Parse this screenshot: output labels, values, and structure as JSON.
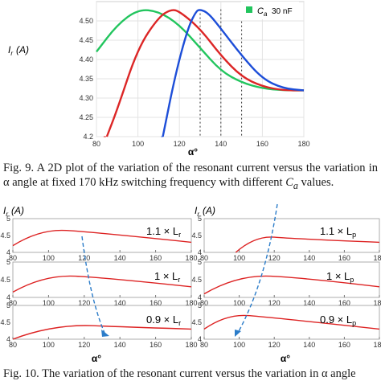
{
  "figure9": {
    "legend_entry": "C",
    "legend_sub": "a",
    "legend_value": "30 nF",
    "legend_color": "#22c55e",
    "ylabel_main": "I",
    "ylabel_sub": "r",
    "ylabel_unit": "(A)",
    "xlabel": "α°",
    "caption": "Fig. 9. A 2D plot of the variation of the resonant current versus the variation in α angle at fixed 170 kHz switching frequency with different ",
    "caption_var": "C",
    "caption_var_sub": "a",
    "caption_end": " values."
  },
  "figure10": {
    "ylabel_main_left": "I",
    "ylabel_sub_left": "r",
    "ylabel_unit_left": "(A)",
    "ylabel_main_right": "I",
    "ylabel_sub_right": "r",
    "ylabel_unit_right": "(A)",
    "xlabel_left": "α°",
    "xlabel_right": "α°",
    "labels_left": [
      "1.1 × L",
      "1 × L",
      "0.9 × L"
    ],
    "labels_left_sub": "r",
    "labels_right": [
      "1.1 × L",
      "1 × L",
      "0.9 × L"
    ],
    "labels_right_sub": "p",
    "caption": "Fig. 10. The variation of the resonant current versus the variation in α angle"
  },
  "chart_data": [
    {
      "type": "line",
      "title": "",
      "xlabel": "α°",
      "ylabel": "Ir (A)",
      "xlim": [
        80,
        180
      ],
      "ylim": [
        4.2,
        4.55
      ],
      "xticks": [
        80,
        100,
        120,
        140,
        160,
        180
      ],
      "yticks": [
        4.2,
        4.25,
        4.3,
        4.35,
        4.4,
        4.45,
        4.5
      ],
      "grid": true,
      "legend_position": "top-right",
      "series": [
        {
          "name": "",
          "color": "#22c55e",
          "x": [
            80,
            90,
            100,
            110,
            120,
            130,
            140,
            150,
            160,
            170,
            180
          ],
          "y": [
            4.42,
            4.49,
            4.53,
            4.525,
            4.49,
            4.43,
            4.37,
            4.34,
            4.325,
            4.32,
            4.32
          ]
        },
        {
          "name": "",
          "color": "#dc2626",
          "x": [
            85,
            90,
            100,
            110,
            116,
            120,
            130,
            140,
            150,
            160,
            170,
            180
          ],
          "y": [
            4.2,
            4.27,
            4.43,
            4.51,
            4.53,
            4.525,
            4.48,
            4.41,
            4.355,
            4.33,
            4.32,
            4.32
          ]
        },
        {
          "name": "",
          "color": "#1d4ed8",
          "x": [
            112,
            118,
            124,
            128,
            130,
            134,
            140,
            150,
            160,
            170,
            180
          ],
          "y": [
            4.2,
            4.36,
            4.48,
            4.525,
            4.53,
            4.52,
            4.48,
            4.41,
            4.35,
            4.325,
            4.32
          ]
        }
      ],
      "reference_lines_x": [
        130,
        140,
        150
      ]
    },
    {
      "type": "line",
      "title": "",
      "xlabel": "α°",
      "ylabel": "Ir (A)",
      "xlim": [
        80,
        180
      ],
      "ylim": [
        4,
        5
      ],
      "xticks": [
        80,
        100,
        120,
        140,
        160,
        180
      ],
      "yticks": [
        4,
        4.5,
        5
      ],
      "series": [
        {
          "name": "",
          "x": [
            80,
            110,
            180
          ],
          "y": [
            4.2,
            4.65,
            4.3
          ]
        },
        {
          "name": "",
          "x": [
            80,
            115,
            180
          ],
          "y": [
            4.15,
            4.6,
            4.3
          ]
        },
        {
          "name": "",
          "x": [
            80,
            125,
            180
          ],
          "y": [
            4.0,
            4.4,
            4.3
          ]
        }
      ]
    },
    {
      "type": "line",
      "title": "",
      "xlabel": "α°",
      "ylabel": "Ir (A)",
      "xlim": [
        80,
        180
      ],
      "ylim": [
        4,
        5
      ],
      "xticks": [
        80,
        100,
        120,
        140,
        160,
        180
      ],
      "yticks": [
        4,
        4.5,
        5
      ],
      "series": [
        {
          "name": "",
          "x": [
            98,
            120,
            180
          ],
          "y": [
            4.0,
            4.45,
            4.3
          ]
        },
        {
          "name": "",
          "x": [
            80,
            118,
            180
          ],
          "y": [
            4.1,
            4.6,
            4.3
          ]
        },
        {
          "name": "",
          "x": [
            80,
            105,
            180
          ],
          "y": [
            4.3,
            4.7,
            4.3
          ]
        }
      ]
    }
  ]
}
